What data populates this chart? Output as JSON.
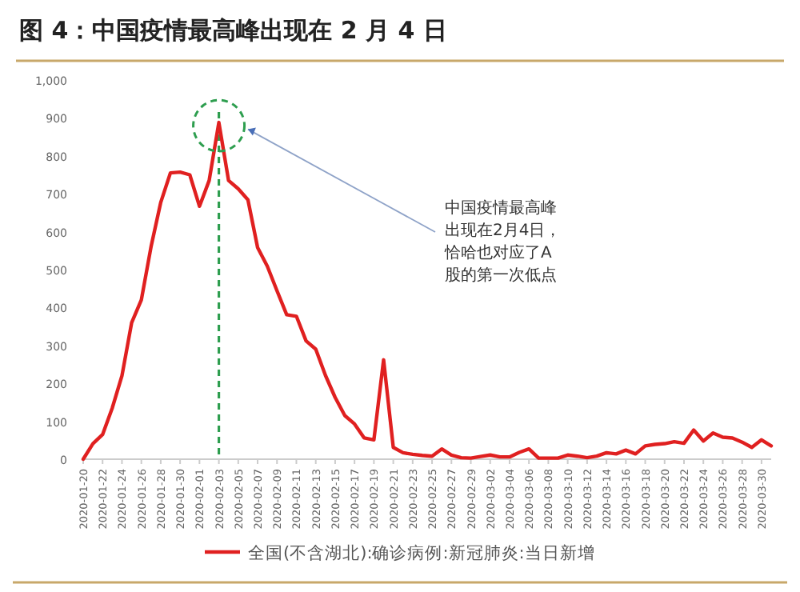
{
  "chart_data": {
    "type": "line",
    "title": "图 4：中国疫情最高峰出现在 2 月 4 日",
    "x": [
      "2020-01-20",
      "2020-01-21",
      "2020-01-22",
      "2020-01-23",
      "2020-01-24",
      "2020-01-25",
      "2020-01-26",
      "2020-01-27",
      "2020-01-28",
      "2020-01-29",
      "2020-01-30",
      "2020-01-31",
      "2020-02-01",
      "2020-02-02",
      "2020-02-03",
      "2020-02-04",
      "2020-02-05",
      "2020-02-06",
      "2020-02-07",
      "2020-02-08",
      "2020-02-09",
      "2020-02-10",
      "2020-02-11",
      "2020-02-12",
      "2020-02-13",
      "2020-02-14",
      "2020-02-15",
      "2020-02-16",
      "2020-02-17",
      "2020-02-18",
      "2020-02-19",
      "2020-02-20",
      "2020-02-21",
      "2020-02-22",
      "2020-02-23",
      "2020-02-24",
      "2020-02-25",
      "2020-02-26",
      "2020-02-27",
      "2020-02-28",
      "2020-02-29",
      "2020-03-01",
      "2020-03-02",
      "2020-03-03",
      "2020-03-04",
      "2020-03-05",
      "2020-03-06",
      "2020-03-07",
      "2020-03-08",
      "2020-03-09",
      "2020-03-10",
      "2020-03-11",
      "2020-03-12",
      "2020-03-13",
      "2020-03-14",
      "2020-03-15",
      "2020-03-16",
      "2020-03-17",
      "2020-03-18",
      "2020-03-19",
      "2020-03-20",
      "2020-03-21",
      "2020-03-22",
      "2020-03-23",
      "2020-03-24",
      "2020-03-25",
      "2020-03-26",
      "2020-03-27",
      "2020-03-28",
      "2020-03-29",
      "2020-03-30",
      "2020-03-31"
    ],
    "series": [
      {
        "name": "全国(不含湖北):确诊病例:新冠肺炎:当日新增",
        "color": "#e02020",
        "values": [
          0,
          41,
          65,
          135,
          220,
          360,
          420,
          560,
          677,
          755,
          757,
          750,
          667,
          735,
          888,
          735,
          713,
          684,
          558,
          509,
          444,
          381,
          377,
          312,
          290,
          221,
          163,
          115,
          93,
          56,
          51,
          262,
          31,
          17,
          13,
          10,
          8,
          27,
          11,
          4,
          3,
          7,
          11,
          6,
          6,
          18,
          27,
          3,
          3,
          3,
          11,
          8,
          4,
          8,
          17,
          14,
          24,
          14,
          35,
          39,
          41,
          46,
          42,
          77,
          48,
          69,
          58,
          56,
          45,
          31,
          51,
          35
        ]
      }
    ],
    "xlim": [
      "2020-01-20",
      "2020-03-31"
    ],
    "xticks": [
      "2020-01-20",
      "2020-01-22",
      "2020-01-24",
      "2020-01-26",
      "2020-01-28",
      "2020-01-30",
      "2020-02-01",
      "2020-02-03",
      "2020-02-05",
      "2020-02-07",
      "2020-02-09",
      "2020-02-11",
      "2020-02-13",
      "2020-02-15",
      "2020-02-17",
      "2020-02-19",
      "2020-02-21",
      "2020-02-23",
      "2020-02-25",
      "2020-02-27",
      "2020-02-29",
      "2020-03-02",
      "2020-03-04",
      "2020-03-06",
      "2020-03-08",
      "2020-03-10",
      "2020-03-12",
      "2020-03-14",
      "2020-03-16",
      "2020-03-18",
      "2020-03-20",
      "2020-03-22",
      "2020-03-24",
      "2020-03-26",
      "2020-03-28",
      "2020-03-30"
    ],
    "ylim": [
      0,
      1000
    ],
    "yticks": [
      0,
      100,
      200,
      300,
      400,
      500,
      600,
      700,
      800,
      900,
      {
        "value": 1000,
        "label": "1,000"
      }
    ],
    "ref_lines": [
      {
        "axis": "x",
        "value": "2020-02-03",
        "color": "#2e9e4f",
        "line_style": "dashed"
      }
    ],
    "annotations": [
      {
        "text": "中国疫情最高峰出现在2月4日，恰哈也对应了A股的第一次低点",
        "x": "2020-02-06",
        "y": 870
      }
    ],
    "legend": "bottom",
    "grid": false,
    "marker": "none",
    "line_style": "solid"
  }
}
